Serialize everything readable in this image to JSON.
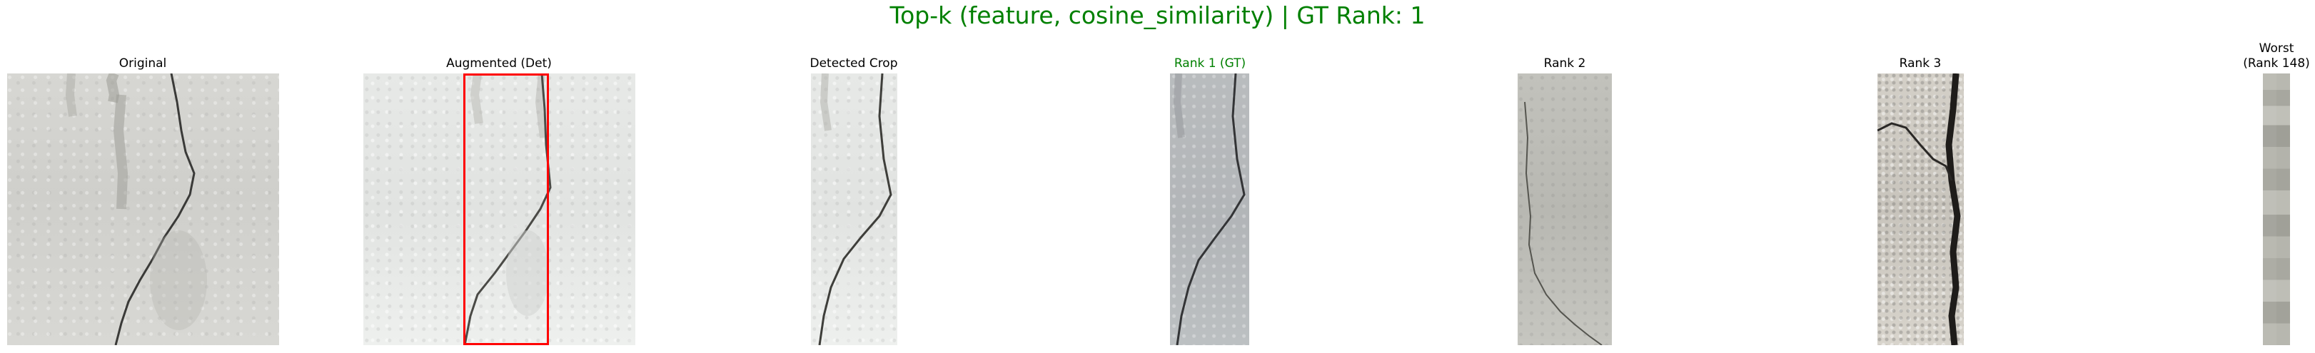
{
  "figure": {
    "title": "Top-k (feature, cosine_similarity) | GT Rank: 1",
    "title_color": "#008000"
  },
  "panels": [
    {
      "id": "original",
      "title_lines": [
        "Original"
      ],
      "title_color": "#000000"
    },
    {
      "id": "augmented",
      "title_lines": [
        "Augmented (Det)"
      ],
      "title_color": "#000000",
      "box_color": "#ff0000"
    },
    {
      "id": "detected-crop",
      "title_lines": [
        "Detected Crop"
      ],
      "title_color": "#000000"
    },
    {
      "id": "rank-1",
      "title_lines": [
        "Rank 1 (GT)"
      ],
      "title_color": "#008000"
    },
    {
      "id": "rank-2",
      "title_lines": [
        "Rank 2"
      ],
      "title_color": "#000000"
    },
    {
      "id": "rank-3",
      "title_lines": [
        "Rank 3"
      ],
      "title_color": "#000000"
    },
    {
      "id": "worst",
      "title_lines": [
        "Worst",
        "(Rank 148)"
      ],
      "title_color": "#000000"
    }
  ]
}
